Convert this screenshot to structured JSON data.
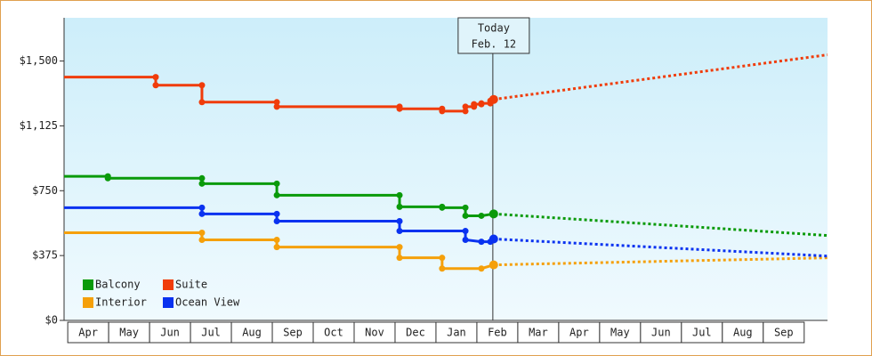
{
  "chart_data": {
    "type": "line",
    "categories": [
      "Apr",
      "May",
      "Jun",
      "Jul",
      "Aug",
      "Sep",
      "Oct",
      "Nov",
      "Dec",
      "Jan",
      "Feb",
      "Mar",
      "Apr",
      "May",
      "Jun",
      "Jul",
      "Aug",
      "Sep"
    ],
    "xlim": [
      -0.09,
      18.57
    ],
    "ylim": [
      0,
      1750
    ],
    "yticks": [
      {
        "value": 0,
        "label": "$0"
      },
      {
        "value": 375,
        "label": "$375"
      },
      {
        "value": 750,
        "label": "$750"
      },
      {
        "value": 1125,
        "label": "$1,125"
      },
      {
        "value": 1500,
        "label": "$1,500"
      }
    ],
    "annotation": {
      "lines": [
        "Today",
        "Feb. 12"
      ],
      "x": 10.39
    },
    "series": [
      {
        "name": "Balcony",
        "color": "#0a9a0a",
        "x": [
          -0.09,
          0.98,
          0.98,
          3.28,
          3.28,
          5.11,
          5.11,
          8.11,
          8.11,
          9.15,
          9.15,
          9.72,
          9.72,
          10.11,
          10.41
        ],
        "values": [
          833,
          833,
          822,
          822,
          791,
          791,
          724,
          724,
          657,
          657,
          652,
          652,
          605,
          605,
          616
        ],
        "forecast_x": [
          10.41,
          18.57
        ],
        "forecast_values": [
          616,
          491
        ]
      },
      {
        "name": "Suite",
        "color": "#f03c0a",
        "x": [
          -0.09,
          2.15,
          2.15,
          3.28,
          3.28,
          5.11,
          5.11,
          8.11,
          8.11,
          9.15,
          9.15,
          9.72,
          9.72,
          9.93,
          9.93,
          10.11,
          10.11,
          10.33,
          10.33,
          10.41
        ],
        "values": [
          1407,
          1407,
          1360,
          1360,
          1262,
          1262,
          1236,
          1236,
          1224,
          1224,
          1210,
          1210,
          1236,
          1236,
          1250,
          1250,
          1255,
          1255,
          1270,
          1278
        ],
        "forecast_x": [
          10.41,
          18.57
        ],
        "forecast_values": [
          1278,
          1536
        ]
      },
      {
        "name": "Interior",
        "color": "#f5a00a",
        "x": [
          -0.09,
          3.28,
          3.28,
          5.11,
          5.11,
          8.11,
          8.11,
          9.15,
          9.15,
          10.11,
          10.41
        ],
        "values": [
          507,
          507,
          466,
          466,
          424,
          424,
          362,
          362,
          300,
          300,
          321
        ],
        "forecast_x": [
          10.41,
          18.57
        ],
        "forecast_values": [
          321,
          362
        ]
      },
      {
        "name": "Ocean View",
        "color": "#0a32f0",
        "x": [
          -0.09,
          3.28,
          3.28,
          5.11,
          5.11,
          8.11,
          8.11,
          9.72,
          9.72,
          10.11,
          10.33,
          10.41
        ],
        "values": [
          652,
          652,
          616,
          616,
          574,
          574,
          517,
          517,
          466,
          455,
          455,
          471
        ],
        "forecast_x": [
          10.41,
          18.57
        ],
        "forecast_values": [
          471,
          372
        ]
      }
    ]
  }
}
